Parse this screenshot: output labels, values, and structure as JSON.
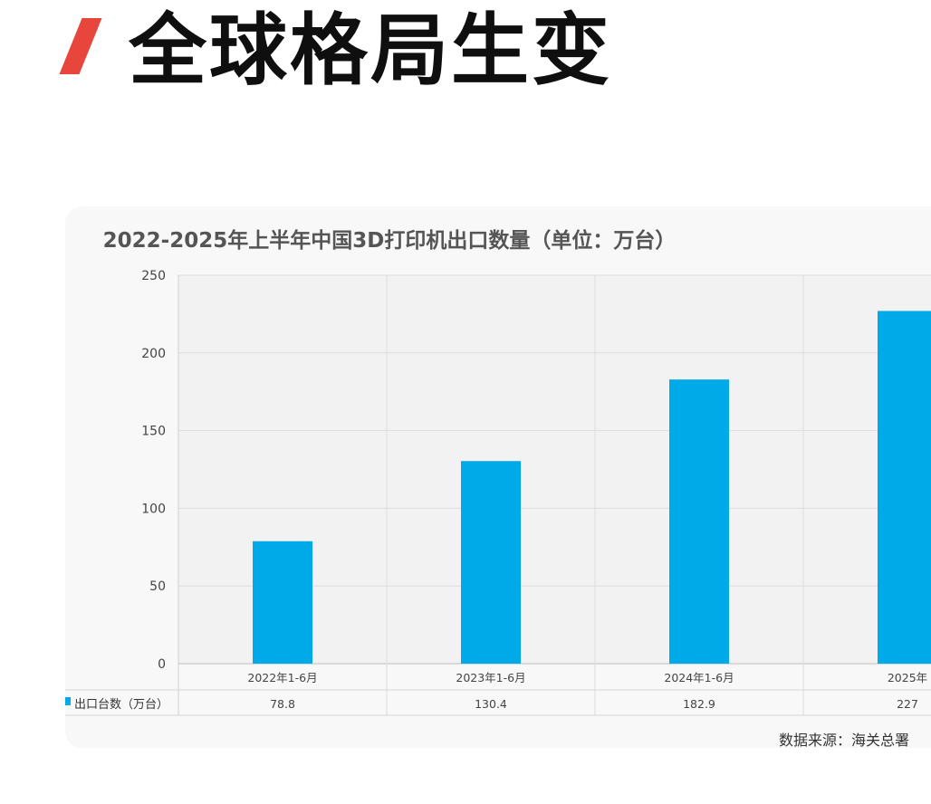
{
  "page": {
    "headline": "全球格局生变",
    "accent_color": "#e8463c"
  },
  "chart_data": {
    "type": "bar",
    "title": "2022-2025年上半年中国3D打印机出口数量（单位：万台）",
    "categories": [
      "2022年1-6月",
      "2023年1-6月",
      "2024年1-6月",
      "2025年"
    ],
    "series": [
      {
        "name": "出口台数（万台）",
        "values": [
          78.8,
          130.4,
          182.9,
          227
        ],
        "color": "#00a9e8"
      }
    ],
    "data_labels": [
      "78.8",
      "130.4",
      "182.9",
      "227"
    ],
    "ylim": [
      0,
      250
    ],
    "yticks": [
      0,
      50,
      100,
      150,
      200,
      250
    ],
    "grid": true,
    "legend": "data-table-left",
    "source": "数据来源：海关总署"
  }
}
